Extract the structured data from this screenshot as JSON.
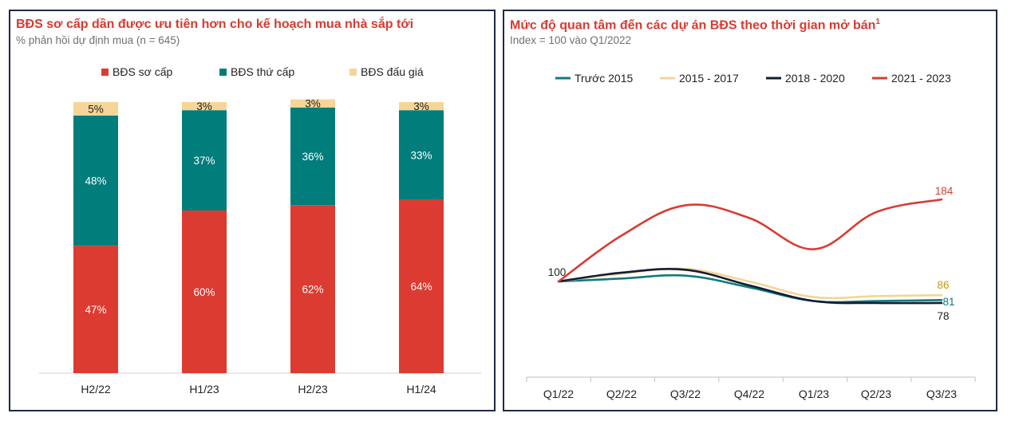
{
  "chart_data": [
    {
      "type": "bar",
      "stacked": true,
      "title": "BĐS sơ cấp dần được ưu tiên hơn cho kế hoạch mua nhà sắp tới",
      "subtitle": "% phản hồi dự định mua (n = 645)",
      "categories": [
        "H2/22",
        "H1/23",
        "H2/23",
        "H1/24"
      ],
      "series": [
        {
          "name": "BĐS sơ cấp",
          "color": "#dc3b31",
          "values": [
            47,
            60,
            62,
            64
          ],
          "labels": [
            "47%",
            "60%",
            "62%",
            "64%"
          ]
        },
        {
          "name": "BĐS thứ cấp",
          "color": "#017d7c",
          "values": [
            48,
            37,
            36,
            33
          ],
          "labels": [
            "48%",
            "37%",
            "36%",
            "33%"
          ]
        },
        {
          "name": "BĐS đấu giá",
          "color": "#f6d598",
          "values": [
            5,
            3,
            3,
            3
          ],
          "labels": [
            "5%",
            "3%",
            "3%",
            "3%"
          ]
        }
      ],
      "ylim": [
        0,
        100
      ],
      "legend": "top",
      "grid": false
    },
    {
      "type": "line",
      "title": "Mức độ quan tâm đến các dự án BĐS theo thời gian mở bán",
      "title_sup": "1",
      "subtitle": "Index = 100 vào Q1/2022",
      "x": [
        "Q1/22",
        "Q2/22",
        "Q3/22",
        "Q4/22",
        "Q1/23",
        "Q2/23",
        "Q3/23"
      ],
      "series": [
        {
          "name": "Trước 2015",
          "color": "#0f7b7c",
          "values": [
            100,
            103,
            106,
            94,
            80,
            80,
            81
          ],
          "end_label": "81"
        },
        {
          "name": "2015 - 2017",
          "color": "#f2d597",
          "values": [
            100,
            108,
            113,
            100,
            84,
            85,
            86
          ],
          "end_label": "86"
        },
        {
          "name": "2018 - 2020",
          "color": "#141c33",
          "values": [
            100,
            109,
            112,
            96,
            80,
            78,
            78
          ],
          "end_label": "78"
        },
        {
          "name": "2021 - 2023",
          "color": "#d83c32",
          "values": [
            100,
            147,
            178,
            165,
            133,
            171,
            184
          ],
          "end_label": "184"
        }
      ],
      "start_label": "100",
      "ylim": [
        50,
        200
      ],
      "legend": "top",
      "grid": false
    }
  ]
}
